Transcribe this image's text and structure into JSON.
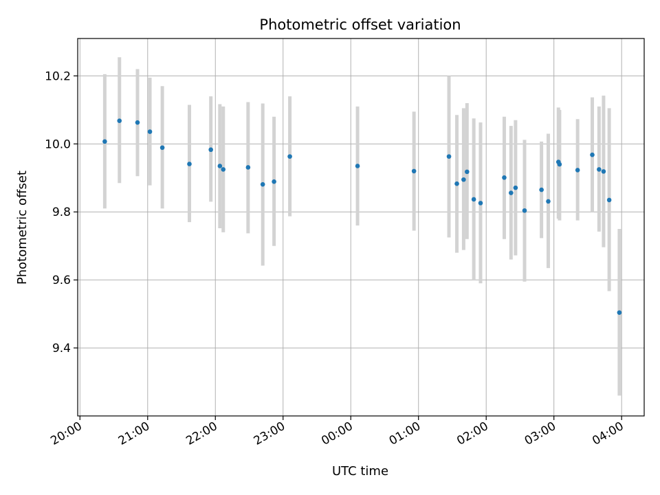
{
  "chart_data": {
    "type": "scatter",
    "title": "Photometric offset variation",
    "xlabel": "UTC time",
    "ylabel": "Photometric offset",
    "xlim": [
      "19:58",
      "04:20"
    ],
    "ylim": [
      9.2,
      10.31
    ],
    "x_ticks": [
      "20:00",
      "21:00",
      "22:00",
      "23:00",
      "00:00",
      "01:00",
      "02:00",
      "03:00",
      "04:00"
    ],
    "y_ticks": [
      9.4,
      9.6,
      9.8,
      10.0,
      10.2
    ],
    "grid": true,
    "colors": {
      "point": "#1f77b4",
      "errorbar": "#d3d3d3",
      "grid": "#b0b0b0",
      "axis": "#000000"
    },
    "series": [
      {
        "points": [
          {
            "t": "20:22",
            "y": 10.007,
            "lo": 9.81,
            "hi": 10.205
          },
          {
            "t": "20:35",
            "y": 10.068,
            "lo": 9.885,
            "hi": 10.255
          },
          {
            "t": "20:51",
            "y": 10.063,
            "lo": 9.905,
            "hi": 10.22
          },
          {
            "t": "21:02",
            "y": 10.036,
            "lo": 9.878,
            "hi": 10.195
          },
          {
            "t": "21:13",
            "y": 9.989,
            "lo": 9.81,
            "hi": 10.17
          },
          {
            "t": "21:37",
            "y": 9.941,
            "lo": 9.77,
            "hi": 10.115
          },
          {
            "t": "21:56",
            "y": 9.983,
            "lo": 9.83,
            "hi": 10.14
          },
          {
            "t": "22:04",
            "y": 9.935,
            "lo": 9.752,
            "hi": 10.117
          },
          {
            "t": "22:07",
            "y": 9.925,
            "lo": 9.74,
            "hi": 10.11
          },
          {
            "t": "22:29",
            "y": 9.931,
            "lo": 9.737,
            "hi": 10.123
          },
          {
            "t": "22:42",
            "y": 9.881,
            "lo": 9.642,
            "hi": 10.119
          },
          {
            "t": "22:52",
            "y": 9.889,
            "lo": 9.7,
            "hi": 10.08
          },
          {
            "t": "23:06",
            "y": 9.963,
            "lo": 9.787,
            "hi": 10.14
          },
          {
            "t": "00:06",
            "y": 9.935,
            "lo": 9.76,
            "hi": 10.11
          },
          {
            "t": "00:56",
            "y": 9.92,
            "lo": 9.745,
            "hi": 10.095
          },
          {
            "t": "01:27",
            "y": 9.963,
            "lo": 9.725,
            "hi": 10.2
          },
          {
            "t": "01:34",
            "y": 9.883,
            "lo": 9.68,
            "hi": 10.085
          },
          {
            "t": "01:40",
            "y": 9.895,
            "lo": 9.688,
            "hi": 10.105
          },
          {
            "t": "01:43",
            "y": 9.918,
            "lo": 9.72,
            "hi": 10.12
          },
          {
            "t": "01:49",
            "y": 9.837,
            "lo": 9.6,
            "hi": 10.075
          },
          {
            "t": "01:55",
            "y": 9.826,
            "lo": 9.59,
            "hi": 10.063
          },
          {
            "t": "02:16",
            "y": 9.901,
            "lo": 9.72,
            "hi": 10.08
          },
          {
            "t": "02:22",
            "y": 9.856,
            "lo": 9.66,
            "hi": 10.053
          },
          {
            "t": "02:26",
            "y": 9.871,
            "lo": 9.672,
            "hi": 10.07
          },
          {
            "t": "02:34",
            "y": 9.804,
            "lo": 9.595,
            "hi": 10.012
          },
          {
            "t": "02:49",
            "y": 9.865,
            "lo": 9.723,
            "hi": 10.007
          },
          {
            "t": "02:55",
            "y": 9.831,
            "lo": 9.635,
            "hi": 10.03
          },
          {
            "t": "03:04",
            "y": 9.947,
            "lo": 9.78,
            "hi": 10.107
          },
          {
            "t": "03:05",
            "y": 9.94,
            "lo": 9.775,
            "hi": 10.1
          },
          {
            "t": "03:21",
            "y": 9.923,
            "lo": 9.775,
            "hi": 10.073
          },
          {
            "t": "03:34",
            "y": 9.968,
            "lo": 9.8,
            "hi": 10.137
          },
          {
            "t": "03:40",
            "y": 9.925,
            "lo": 9.742,
            "hi": 10.11
          },
          {
            "t": "03:44",
            "y": 9.919,
            "lo": 9.696,
            "hi": 10.142
          },
          {
            "t": "03:49",
            "y": 9.835,
            "lo": 9.567,
            "hi": 10.105
          },
          {
            "t": "03:58",
            "y": 9.504,
            "lo": 9.26,
            "hi": 9.75
          }
        ]
      }
    ]
  }
}
